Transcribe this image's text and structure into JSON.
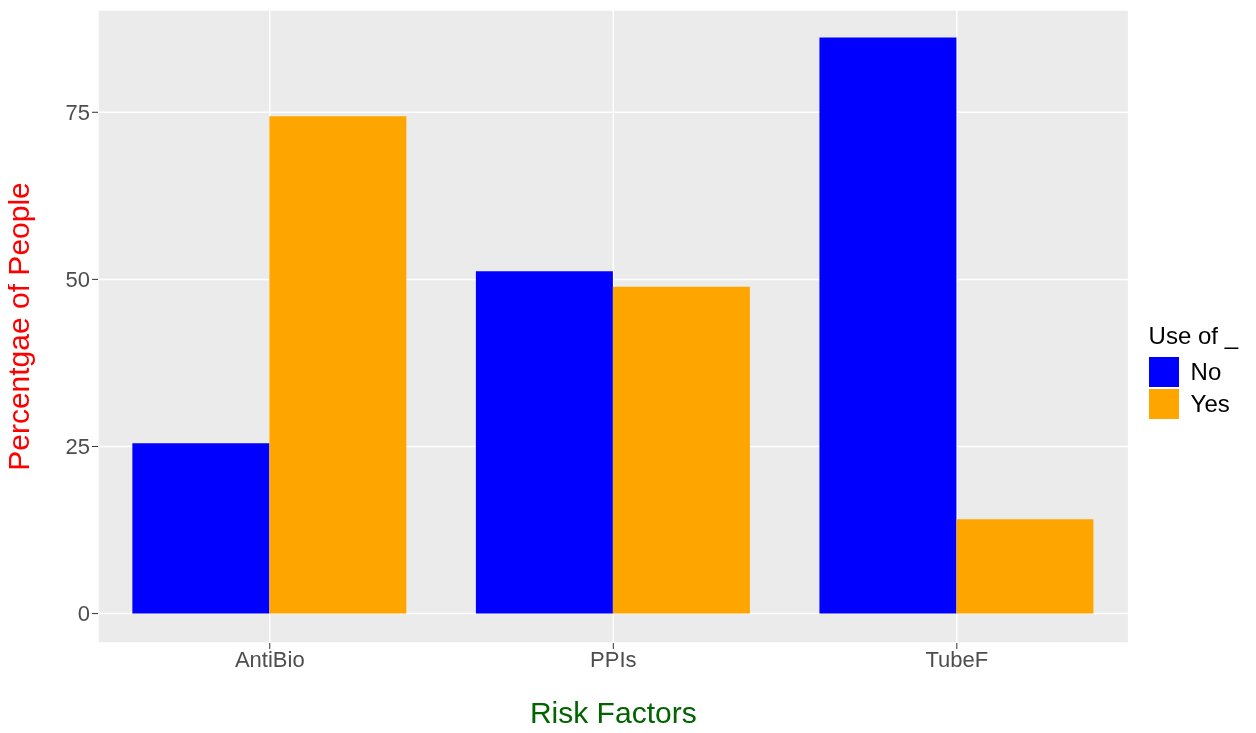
{
  "chart_data": {
    "type": "bar",
    "xlabel": "Risk Factors",
    "ylabel": "Percentgae of People",
    "legend_title": "Use of _",
    "categories": [
      "AntiBio",
      "PPIs",
      "TubeF"
    ],
    "series": [
      {
        "name": "No",
        "color": "#0000ff",
        "values": [
          25.5,
          51.2,
          86.2
        ]
      },
      {
        "name": "Yes",
        "color": "#ffa500",
        "values": [
          74.4,
          48.9,
          14.1
        ]
      }
    ],
    "ylim": [
      -4.4,
      90.3
    ],
    "yticks": [
      0,
      25,
      50,
      75
    ],
    "grid": true,
    "legend": "right"
  }
}
